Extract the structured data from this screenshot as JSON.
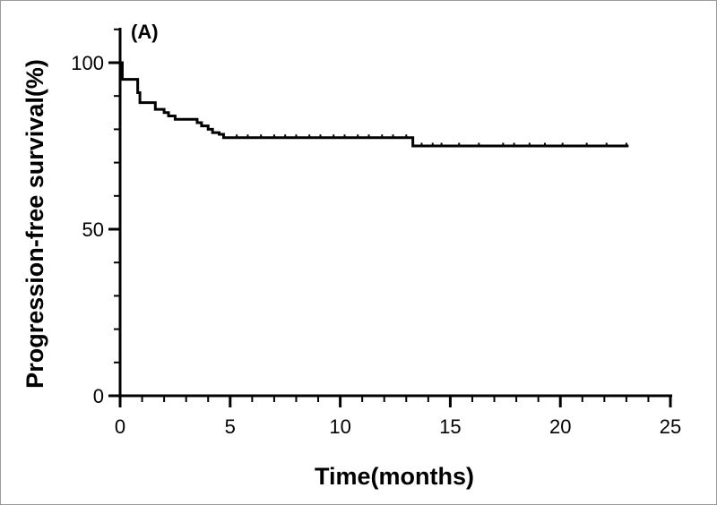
{
  "chart_data": {
    "type": "line",
    "panel_label": "(A)",
    "title": "",
    "xlabel": "Time(months)",
    "ylabel": "Progression-free survival(%)",
    "xlim": [
      0,
      25
    ],
    "ylim": [
      0,
      100
    ],
    "x_ticks": [
      0,
      5,
      10,
      15,
      20,
      25
    ],
    "x_tick_labels": [
      "0",
      "5",
      "10",
      "15",
      "20",
      "25"
    ],
    "y_ticks": [
      0,
      50,
      100
    ],
    "y_tick_labels": [
      "0",
      "50",
      "100"
    ],
    "x_minor_step": 1,
    "y_minor_step": 10,
    "grid": false,
    "legend": "none",
    "line_color": "#000000",
    "series": [
      {
        "steps": [
          [
            0,
            100
          ],
          [
            0.1,
            95
          ],
          [
            0.7,
            95
          ],
          [
            0.8,
            91
          ],
          [
            0.9,
            88
          ],
          [
            1.6,
            86
          ],
          [
            2.0,
            85
          ],
          [
            2.2,
            84
          ],
          [
            2.5,
            83
          ],
          [
            3.5,
            82
          ],
          [
            3.7,
            81
          ],
          [
            4.0,
            80
          ],
          [
            4.2,
            79
          ],
          [
            4.5,
            78.5
          ],
          [
            4.7,
            77.5
          ],
          [
            13.3,
            75
          ],
          [
            23.1,
            75
          ]
        ],
        "censor_x": [
          5.3,
          5.8,
          6.4,
          7.0,
          7.5,
          8.0,
          8.6,
          9.1,
          9.7,
          10.2,
          10.8,
          11.3,
          11.9,
          12.4,
          13.0,
          13.7,
          14.2,
          14.6,
          15.4,
          16.3,
          17.4,
          17.9,
          18.6,
          19.3,
          20.1,
          21.2,
          22.1,
          23.0
        ]
      }
    ]
  }
}
